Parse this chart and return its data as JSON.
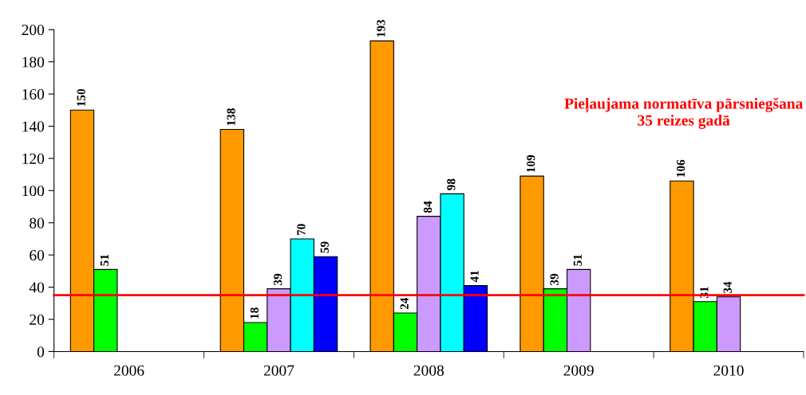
{
  "chart_data": {
    "type": "bar",
    "categories": [
      "2006",
      "2007",
      "2008",
      "2009",
      "2010"
    ],
    "series": [
      {
        "color": "#ff9900",
        "values": [
          150,
          138,
          193,
          109,
          106
        ]
      },
      {
        "color": "#00ff00",
        "values": [
          51,
          18,
          24,
          39,
          31
        ]
      },
      {
        "color": "#cc99ff",
        "values": [
          null,
          39,
          84,
          51,
          34
        ]
      },
      {
        "color": "#00ffff",
        "values": [
          null,
          70,
          98,
          null,
          null
        ]
      },
      {
        "color": "#0000ff",
        "values": [
          null,
          59,
          41,
          null,
          null
        ]
      }
    ],
    "ylim": [
      0,
      200
    ],
    "yticks": [
      0,
      20,
      40,
      60,
      80,
      100,
      120,
      140,
      160,
      180,
      200
    ],
    "ref_lines": [
      {
        "axis": "y",
        "value": 35,
        "label": "Pieļaujama normatīva pārsniegšana 35 reizes gadā",
        "color": "#ff0000",
        "line_style": "solid"
      }
    ],
    "data_labels": true,
    "grid": false,
    "legend": false
  }
}
